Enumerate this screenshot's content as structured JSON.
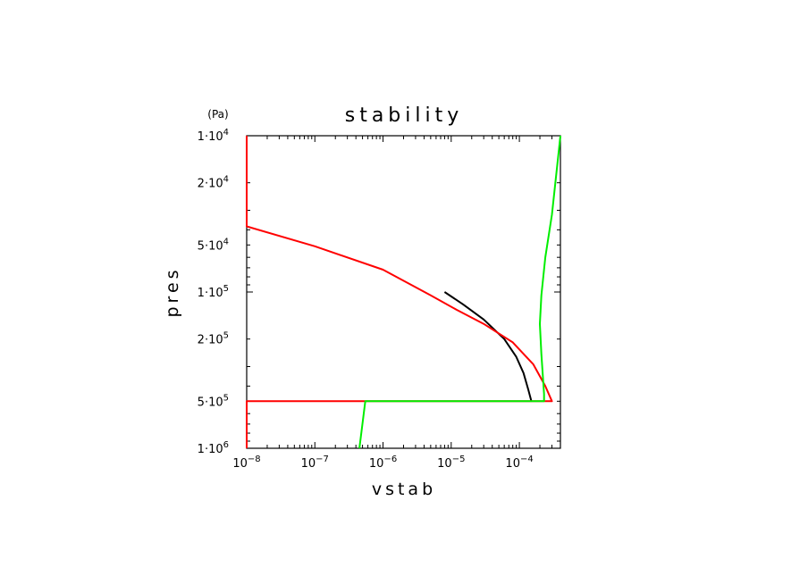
{
  "chart_data": {
    "type": "line",
    "title": "stability",
    "xlabel": "vstab",
    "ylabel": "pres",
    "yunit": "(Pa)",
    "xscale": "log",
    "yscale": "log",
    "y_inverted": true,
    "xlim": [
      1e-08,
      0.0004
    ],
    "ylim": [
      10000.0,
      1000000.0
    ],
    "grid": false,
    "legend": "none",
    "x_ticks": [
      {
        "value": 1e-08,
        "base": "10",
        "exp": "−8"
      },
      {
        "value": 1e-07,
        "base": "10",
        "exp": "−7"
      },
      {
        "value": 1e-06,
        "base": "10",
        "exp": "−6"
      },
      {
        "value": 1e-05,
        "base": "10",
        "exp": "−5"
      },
      {
        "value": 0.0001,
        "base": "10",
        "exp": "−4"
      }
    ],
    "y_ticks": [
      {
        "value": 10000.0,
        "mant": "1",
        "base": "10",
        "exp": "4"
      },
      {
        "value": 20000.0,
        "mant": "2",
        "base": "10",
        "exp": "4"
      },
      {
        "value": 50000.0,
        "mant": "5",
        "base": "10",
        "exp": "4"
      },
      {
        "value": 100000.0,
        "mant": "1",
        "base": "10",
        "exp": "5"
      },
      {
        "value": 200000.0,
        "mant": "2",
        "base": "10",
        "exp": "5"
      },
      {
        "value": 500000.0,
        "mant": "5",
        "base": "10",
        "exp": "5"
      },
      {
        "value": 1000000.0,
        "mant": "1",
        "base": "10",
        "exp": "6"
      }
    ],
    "series": [
      {
        "color": "#000000",
        "points": [
          [
            8e-06,
            100000.0
          ],
          [
            1.5e-05,
            120000.0
          ],
          [
            3e-05,
            150000.0
          ],
          [
            6e-05,
            200000.0
          ],
          [
            9e-05,
            260000.0
          ],
          [
            0.000115,
            330000.0
          ],
          [
            0.000135,
            420000.0
          ],
          [
            0.00015,
            500000.0
          ]
        ]
      },
      {
        "color": "#ff0000",
        "points": [
          [
            1e-08,
            10000.0
          ],
          [
            1e-08,
            38000.0
          ],
          [
            1e-07,
            51000.0
          ],
          [
            1e-06,
            72000.0
          ],
          [
            5e-06,
            105000.0
          ],
          [
            1.2e-05,
            130000.0
          ],
          [
            3e-05,
            160000.0
          ],
          [
            8e-05,
            210000.0
          ],
          [
            0.00016,
            290000.0
          ],
          [
            0.00024,
            400000.0
          ],
          [
            0.0003,
            500000.0
          ],
          [
            1e-08,
            500000.0
          ],
          [
            1e-08,
            1000000.0
          ]
        ]
      },
      {
        "color": "#00ee00",
        "points": [
          [
            0.0004,
            10000.0
          ],
          [
            0.0003,
            32000.0
          ],
          [
            0.00024,
            60000.0
          ],
          [
            0.00021,
            105000.0
          ],
          [
            0.0002,
            160000.0
          ],
          [
            0.00021,
            250000.0
          ],
          [
            0.00023,
            450000.0
          ],
          [
            0.00023,
            500000.0
          ],
          [
            5.5e-07,
            500000.0
          ],
          [
            4.5e-07,
            1000000.0
          ]
        ]
      }
    ]
  }
}
